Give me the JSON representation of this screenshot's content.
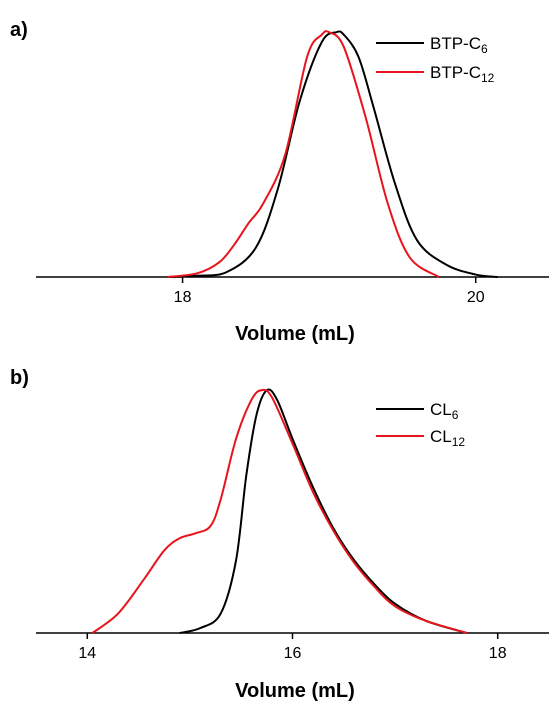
{
  "chart_data": [
    {
      "panel_label": "a)",
      "type": "line",
      "xlabel": "Volume (mL)",
      "ylabel": "",
      "xlim": [
        17.0,
        20.5
      ],
      "ylim": [
        0,
        1.05
      ],
      "x_ticks": [
        "18",
        "20"
      ],
      "x_tick_values": [
        18,
        20
      ],
      "legend": "top-right",
      "grid": false,
      "series": [
        {
          "name_main": "BTP-C",
          "name_sub": "6",
          "color": "#000000",
          "x": [
            17.9,
            18.1,
            18.3,
            18.5,
            18.65,
            18.8,
            18.95,
            19.05,
            19.1,
            19.2,
            19.3,
            19.45,
            19.6,
            19.8,
            20.0,
            20.15
          ],
          "y": [
            0.0,
            0.005,
            0.02,
            0.12,
            0.36,
            0.72,
            0.96,
            1.0,
            0.99,
            0.9,
            0.7,
            0.38,
            0.15,
            0.05,
            0.01,
            0.0
          ]
        },
        {
          "name_main": "BTP-C",
          "name_sub": "12",
          "color": "#e8141b",
          "x": [
            17.9,
            18.1,
            18.25,
            18.35,
            18.45,
            18.55,
            18.7,
            18.85,
            18.95,
            19.0,
            19.1,
            19.25,
            19.4,
            19.55,
            19.75
          ],
          "y": [
            0.0,
            0.015,
            0.06,
            0.13,
            0.22,
            0.3,
            0.5,
            0.9,
            0.99,
            1.0,
            0.94,
            0.65,
            0.3,
            0.08,
            0.0
          ]
        }
      ]
    },
    {
      "panel_label": "b)",
      "type": "line",
      "xlabel": "Volume (mL)",
      "ylabel": "",
      "xlim": [
        13.5,
        18.5
      ],
      "ylim": [
        0,
        1.05
      ],
      "x_ticks": [
        "14",
        "16",
        "18"
      ],
      "x_tick_values": [
        14,
        16,
        18
      ],
      "legend": "top-right",
      "grid": false,
      "series": [
        {
          "name_main": "CL",
          "name_sub": "6",
          "color": "#000000",
          "x": [
            14.9,
            15.1,
            15.3,
            15.45,
            15.55,
            15.65,
            15.75,
            15.85,
            16.0,
            16.2,
            16.4,
            16.6,
            16.8,
            17.0,
            17.3,
            17.7
          ],
          "y": [
            0.0,
            0.02,
            0.08,
            0.3,
            0.65,
            0.9,
            1.0,
            0.96,
            0.8,
            0.6,
            0.43,
            0.3,
            0.2,
            0.12,
            0.05,
            0.0
          ]
        },
        {
          "name_main": "CL",
          "name_sub": "12",
          "color": "#e8141b",
          "x": [
            14.05,
            14.3,
            14.55,
            14.75,
            14.9,
            15.05,
            15.2,
            15.3,
            15.45,
            15.6,
            15.7,
            15.8,
            16.0,
            16.2,
            16.4,
            16.6,
            16.8,
            17.0,
            17.3,
            17.7
          ],
          "y": [
            0.0,
            0.08,
            0.22,
            0.34,
            0.39,
            0.41,
            0.44,
            0.55,
            0.8,
            0.96,
            1.0,
            0.97,
            0.78,
            0.58,
            0.42,
            0.29,
            0.19,
            0.11,
            0.05,
            0.0
          ]
        }
      ]
    }
  ]
}
